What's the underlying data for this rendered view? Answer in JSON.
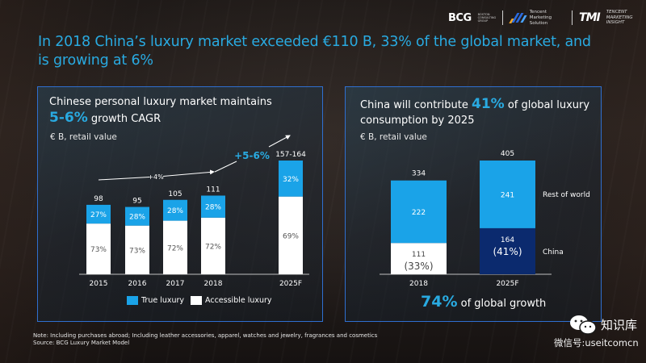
{
  "header": {
    "logos": {
      "bcg": "BCG",
      "bcg_sub": "BOSTON CONSULTING GROUP",
      "tencent_line1": "Tencent",
      "tencent_line2": "Marketing Solution",
      "tmi": "TMI",
      "tmi_line1": "TENCENT",
      "tmi_line2": "MARKETING INSIGHT"
    },
    "title": "In 2018 China’s luxury market exceeded €110 B, 33% of the global market, and is growing at 6%"
  },
  "left_panel": {
    "heading_line1": "Chinese personal luxury market maintains",
    "heading_accent": "5-6%",
    "heading_rest": " growth CAGR",
    "unit": "€ B, retail value",
    "legend": [
      {
        "label": "True luxury",
        "color": "#1aa3e8"
      },
      {
        "label": "Accessible luxury",
        "color": "#ffffff"
      }
    ]
  },
  "right_panel": {
    "heading_pre": "China will contribute ",
    "heading_accent": "41%",
    "heading_post": " of global luxury",
    "heading_line2": "consumption by 2025",
    "unit": "€ B, retail value",
    "growth_value": "74%",
    "growth_text": " of global growth"
  },
  "footnote": {
    "note": "Note: Including purchases abroad; Including leather accessories, apparel, watches and jewelry, fragrances and cosmetics",
    "source": "Source: BCG Luxury Market Model"
  },
  "watermark": {
    "title": "知识库",
    "id": "微信号:useitcomcn"
  },
  "colors": {
    "accent": "#29aae1",
    "true_luxury": "#1aa3e8",
    "accessible_luxury": "#ffffff",
    "china_2025": "#0b2a6e",
    "panel_border": "#2f6fd0"
  },
  "chart_data": [
    {
      "type": "bar",
      "stacked": true,
      "title": "Chinese personal luxury market maintains 5-6% growth CAGR",
      "ylabel": "€ B, retail value",
      "categories": [
        "2015",
        "2016",
        "2017",
        "2018",
        "2025F"
      ],
      "totals": [
        98,
        95,
        105,
        111,
        160.5
      ],
      "total_labels": [
        "98",
        "95",
        "105",
        "111",
        "157-164"
      ],
      "series": [
        {
          "name": "Accessible luxury",
          "share_pct": [
            73,
            73,
            72,
            72,
            69
          ],
          "labels": [
            "73%",
            "73%",
            "72%",
            "72%",
            "69%"
          ]
        },
        {
          "name": "True luxury",
          "share_pct": [
            27,
            28,
            28,
            28,
            32
          ],
          "labels": [
            "27%",
            "28%",
            "28%",
            "28%",
            "32%"
          ]
        }
      ],
      "annotations": [
        {
          "text": "+4%",
          "span": [
            "2015",
            "2018"
          ]
        },
        {
          "text": "+5-6%",
          "span": [
            "2018",
            "2025F"
          ]
        }
      ],
      "ylim": [
        0,
        165
      ],
      "grid": false,
      "legend": "bottom"
    },
    {
      "type": "bar",
      "stacked": true,
      "title": "China will contribute 41% of global luxury consumption by 2025",
      "ylabel": "€ B, retail value",
      "categories": [
        "2018",
        "2025F"
      ],
      "totals": [
        334,
        405
      ],
      "series": [
        {
          "name": "China",
          "values": [
            111,
            164
          ],
          "labels": [
            "111",
            "164"
          ],
          "share_labels": [
            "(33%)",
            "(41%)"
          ]
        },
        {
          "name": "Rest of world",
          "values": [
            222,
            241
          ],
          "labels": [
            "222",
            "241"
          ]
        }
      ],
      "series_labels_position": "right",
      "ylim": [
        0,
        420
      ],
      "grid": false,
      "annotation": "74% of global growth"
    }
  ]
}
